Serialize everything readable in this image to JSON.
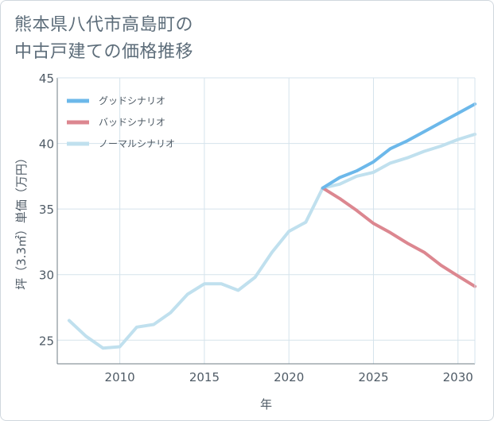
{
  "title": {
    "line1": "熊本県八代市高島町の",
    "line2": "中古戸建ての価格推移"
  },
  "colors": {
    "good": "#6cb8ea",
    "bad": "#dc8790",
    "normal": "#c0e0ee",
    "grid": "#d5e3ec",
    "axis": "#6f7c86",
    "text": "#4f5b66"
  },
  "chart_data": {
    "type": "line",
    "xlabel": "年",
    "ylabel": "坪（3.3㎡）単価（万円）",
    "xlim": [
      2006.3,
      2031
    ],
    "ylim": [
      23.2,
      45
    ],
    "xticks": [
      2010,
      2015,
      2020,
      2025,
      2030
    ],
    "yticks": [
      25,
      30,
      35,
      40,
      45
    ],
    "xtick_labels": [
      "2010",
      "2015",
      "2020",
      "2025",
      "2030"
    ],
    "ytick_labels": [
      "25",
      "30",
      "35",
      "40",
      "45"
    ],
    "grid": true,
    "legend_position": "top-left",
    "series": [
      {
        "name": "グッドシナリオ",
        "key": "good",
        "x": [
          2022,
          2023,
          2024,
          2025,
          2026,
          2027,
          2028,
          2029,
          2030,
          2031
        ],
        "y": [
          36.6,
          37.4,
          37.9,
          38.6,
          39.6,
          40.2,
          40.9,
          41.6,
          42.3,
          43.0
        ]
      },
      {
        "name": "バッドシナリオ",
        "key": "bad",
        "x": [
          2022,
          2023,
          2024,
          2025,
          2026,
          2027,
          2028,
          2029,
          2030,
          2031
        ],
        "y": [
          36.6,
          35.8,
          34.9,
          33.9,
          33.2,
          32.4,
          31.7,
          30.7,
          29.9,
          29.1
        ]
      },
      {
        "name": "ノーマルシナリオ",
        "key": "normal",
        "x": [
          2007,
          2008,
          2009,
          2010,
          2011,
          2012,
          2013,
          2014,
          2015,
          2016,
          2017,
          2018,
          2019,
          2020,
          2021,
          2022,
          2023,
          2024,
          2025,
          2026,
          2027,
          2028,
          2029,
          2030,
          2031
        ],
        "y": [
          26.5,
          25.3,
          24.4,
          24.5,
          26.0,
          26.2,
          27.1,
          28.5,
          29.3,
          29.3,
          28.8,
          29.8,
          31.7,
          33.3,
          34.0,
          36.6,
          36.9,
          37.5,
          37.8,
          38.5,
          38.9,
          39.4,
          39.8,
          40.3,
          40.7
        ]
      }
    ]
  }
}
